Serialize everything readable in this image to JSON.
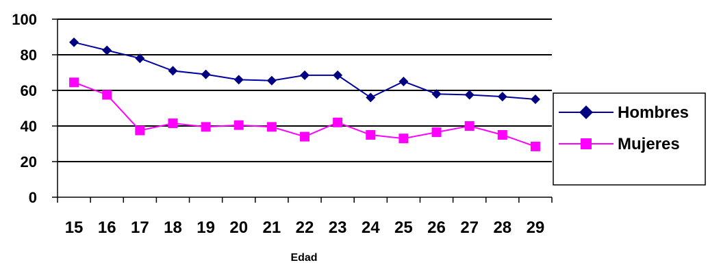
{
  "chart_data": {
    "type": "line",
    "xlabel": "Edad",
    "ylabel": "",
    "title": "",
    "ylim": [
      0,
      100
    ],
    "yticks": [
      0,
      20,
      40,
      60,
      80,
      100
    ],
    "grid": "horizontal",
    "legend_position": "right",
    "x": [
      "15",
      "16",
      "17",
      "18",
      "19",
      "20",
      "21",
      "22",
      "23",
      "24",
      "25",
      "26",
      "27",
      "28",
      "29"
    ],
    "series": [
      {
        "name": "Hombres",
        "color": "#0000a0",
        "marker": "diamond",
        "values": [
          87,
          82.5,
          78,
          71,
          69,
          66,
          65.5,
          68.5,
          68.5,
          56,
          65,
          58,
          57.5,
          56.5,
          55
        ]
      },
      {
        "name": "Mujeres",
        "color": "#ff00ff",
        "marker": "square",
        "values": [
          64.5,
          57.5,
          37.5,
          41.5,
          39.5,
          40.5,
          39.5,
          34,
          42,
          35,
          33,
          36.5,
          40,
          35,
          28.5
        ]
      }
    ]
  }
}
